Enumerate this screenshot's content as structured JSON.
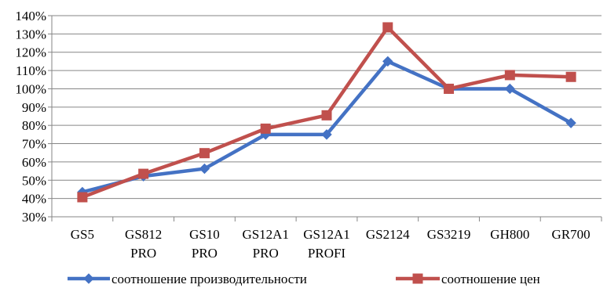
{
  "chart_data": {
    "type": "line",
    "categories": [
      "GS5",
      "GS812 PRO",
      "GS10 PRO",
      "GS12A1 PRO",
      "GS12A1 PROFI",
      "GS2124",
      "GS3219",
      "GH800",
      "GR700"
    ],
    "category_lines": [
      [
        "GS5"
      ],
      [
        "GS812",
        "PRO"
      ],
      [
        "GS10",
        "PRO"
      ],
      [
        "GS12A1",
        "PRO"
      ],
      [
        "GS12A1",
        "PROFI"
      ],
      [
        "GS2124"
      ],
      [
        "GS3219"
      ],
      [
        "GH800"
      ],
      [
        "GR700"
      ]
    ],
    "series": [
      {
        "name": "соотношение производительности",
        "color": "#4472C4",
        "marker": "diamond",
        "values": [
          43.5,
          52.2,
          56.3,
          75.0,
          75.0,
          115.0,
          100.0,
          100.0,
          81.3
        ]
      },
      {
        "name": "соотношение цен",
        "color": "#C0504D",
        "marker": "square",
        "values": [
          40.7,
          53.5,
          64.8,
          78.2,
          85.5,
          133.6,
          100.0,
          107.5,
          106.5
        ]
      }
    ],
    "ylim": [
      30,
      140
    ],
    "y_step": 10,
    "y_tick_suffix": "%",
    "grid": true,
    "legend_position": "bottom",
    "title": "",
    "xlabel": "",
    "ylabel": ""
  }
}
